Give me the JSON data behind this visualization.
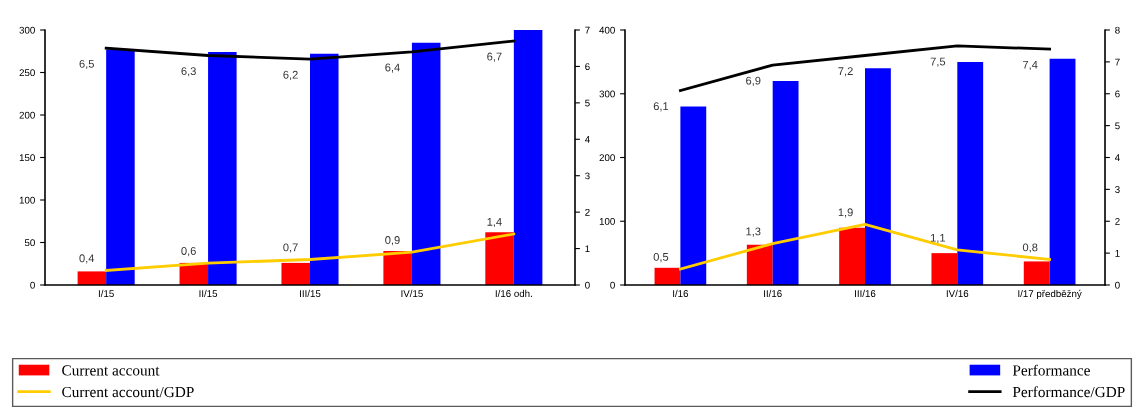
{
  "chart_data": [
    {
      "type": "bar",
      "categories": [
        "I/15",
        "II/15",
        "III/15",
        "IV/15",
        "I/16 odh."
      ],
      "ylim": [
        0,
        300
      ],
      "yticks": [
        0,
        50,
        100,
        150,
        200,
        250,
        300
      ],
      "y2lim": [
        0,
        7
      ],
      "y2ticks": [
        0,
        1,
        2,
        3,
        4,
        5,
        6,
        7
      ],
      "legend": "bottom",
      "grid": false,
      "series": [
        {
          "name": "Current account",
          "color": "#ff0000",
          "values": [
            16,
            26,
            26,
            40,
            62
          ]
        },
        {
          "name": "Performance",
          "color": "#0000ff",
          "values": [
            277,
            274,
            272,
            285,
            300
          ]
        },
        {
          "name": "Current account/GDP",
          "type": "line",
          "axis": "y2",
          "color": "#ffcc00",
          "values": [
            0.4,
            0.6,
            0.7,
            0.9,
            1.4
          ],
          "value_labels": [
            "0,4",
            "0,6",
            "0,7",
            "0,9",
            "1,4"
          ]
        },
        {
          "name": "Performance/GDP",
          "type": "line",
          "axis": "y2",
          "color": "#000000",
          "values": [
            6.5,
            6.3,
            6.2,
            6.4,
            6.7
          ],
          "value_labels": [
            "6,5",
            "6,3",
            "6,2",
            "6,4",
            "6,7"
          ]
        }
      ]
    },
    {
      "type": "bar",
      "categories": [
        "I/16",
        "II/16",
        "III/16",
        "IV/16",
        "I/17 předběžný"
      ],
      "ylim": [
        0,
        400
      ],
      "yticks": [
        0,
        100,
        200,
        300,
        400
      ],
      "y2lim": [
        0,
        8
      ],
      "y2ticks": [
        0,
        1,
        2,
        3,
        4,
        5,
        6,
        7,
        8
      ],
      "grid": false,
      "series": [
        {
          "color": "#ff0000",
          "values": [
            27,
            63,
            90,
            50,
            37
          ]
        },
        {
          "color": "#0000ff",
          "values": [
            280,
            320,
            340,
            350,
            355
          ]
        },
        {
          "type": "line",
          "axis": "y2",
          "color": "#ffcc00",
          "values": [
            0.5,
            1.3,
            1.9,
            1.1,
            0.8
          ],
          "value_labels": [
            "0,5",
            "1,3",
            "1,9",
            "1,1",
            "0,8"
          ]
        },
        {
          "type": "line",
          "axis": "y2",
          "color": "#000000",
          "values": [
            6.1,
            6.9,
            7.2,
            7.5,
            7.4
          ],
          "value_labels": [
            "6,1",
            "6,9",
            "7,2",
            "7,5",
            "7,4"
          ]
        }
      ]
    }
  ]
}
